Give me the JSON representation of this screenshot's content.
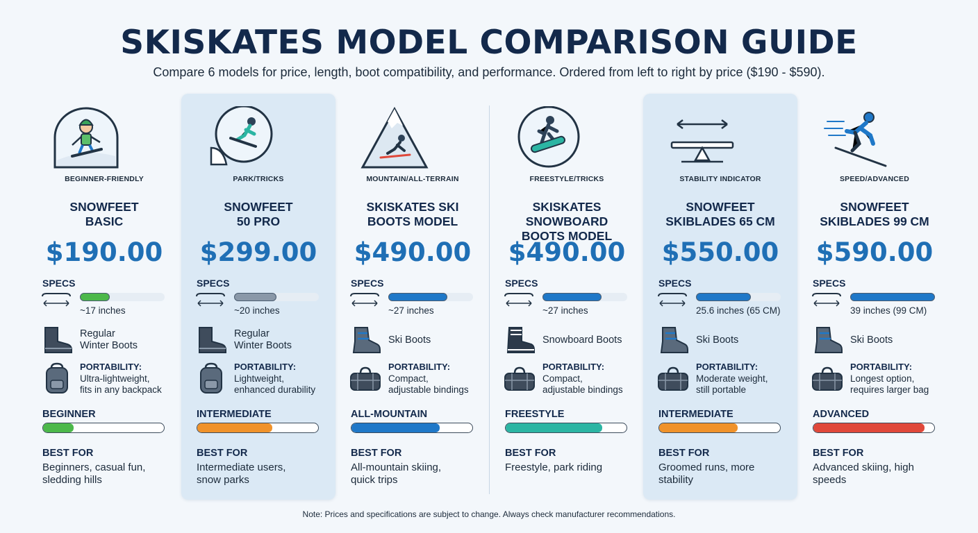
{
  "header": {
    "title": "SKISKATES MODEL COMPARISON GUIDE",
    "subtitle": "Compare 6 models for price, length, boot compatibility, and performance. Ordered from left to right by price ($190 - $590)."
  },
  "labels": {
    "specs": "SPECS",
    "portability": "PORTABILITY:",
    "best_for": "BEST FOR"
  },
  "colors": {
    "green": "#4cb84a",
    "gray": "#8a98a8",
    "blue": "#1f78c8",
    "orange": "#f0922a",
    "teal": "#2bb5a3",
    "red": "#e0483a"
  },
  "models": [
    {
      "category": "BEGINNER-FRIENDLY",
      "icon": "beginner-snowboarder-icon",
      "name": "SNOWFEET\nBASIC",
      "price": "$190.00",
      "length": "~17 inches",
      "length_fraction": 0.35,
      "length_color": "#4cb84a",
      "boots": "Regular\nWinter Boots",
      "boot_icon": "winter-boot-icon",
      "portability": "Ultra-lightweight,\nfits in any backpack",
      "bag_icon": "backpack-icon",
      "level": "BEGINNER",
      "level_fraction": 0.25,
      "level_color": "#4cb84a",
      "best_for": "Beginners, casual fun,\nsledding hills",
      "highlight": false
    },
    {
      "category": "PARK/TRICKS",
      "icon": "park-tricks-icon",
      "name": "SNOWFEET\n50 PRO",
      "price": "$299.00",
      "length": "~20 inches",
      "length_fraction": 0.5,
      "length_color": "#8a98a8",
      "boots": "Regular\nWinter Boots",
      "boot_icon": "winter-boot-icon",
      "portability": "Lightweight,\nenhanced durability",
      "bag_icon": "backpack-icon",
      "level": "INTERMEDIATE",
      "level_fraction": 0.62,
      "level_color": "#f0922a",
      "best_for": "Intermediate users,\nsnow parks",
      "highlight": true
    },
    {
      "category": "MOUNTAIN/ALL-TERRAIN",
      "icon": "mountain-skier-icon",
      "name": "SKISKATES SKI\nBOOTS MODEL",
      "price": "$490.00",
      "length": "~27 inches",
      "length_fraction": 0.7,
      "length_color": "#1f78c8",
      "boots": "Ski Boots",
      "boot_icon": "ski-boot-icon",
      "portability": "Compact,\nadjustable bindings",
      "bag_icon": "duffel-bag-icon",
      "level": "ALL-MOUNTAIN",
      "level_fraction": 0.73,
      "level_color": "#1f78c8",
      "best_for": "All-mountain skiing,\nquick trips",
      "highlight": false
    },
    {
      "category": "FREESTYLE/TRICKS",
      "icon": "freestyle-snowboarder-icon",
      "name": "SKISKATES SNOWBOARD\nBOOTS MODEL",
      "price": "$490.00",
      "length": "~27 inches",
      "length_fraction": 0.7,
      "length_color": "#1f78c8",
      "boots": "Snowboard Boots",
      "boot_icon": "snowboard-boot-icon",
      "portability": "Compact,\nadjustable bindings",
      "bag_icon": "duffel-bag-icon",
      "level": "FREESTYLE",
      "level_fraction": 0.8,
      "level_color": "#2bb5a3",
      "best_for": "Freestyle, park riding",
      "highlight": false
    },
    {
      "category": "STABILITY INDICATOR",
      "icon": "stability-balance-icon",
      "name": "SNOWFEET\nSKIBLADES 65 CM",
      "price": "$550.00",
      "length": "25.6 inches (65 CM)",
      "length_fraction": 0.65,
      "length_color": "#1f78c8",
      "boots": "Ski Boots",
      "boot_icon": "ski-boot-icon",
      "portability": "Moderate weight,\nstill portable",
      "bag_icon": "duffel-bag-icon",
      "level": "INTERMEDIATE",
      "level_fraction": 0.65,
      "level_color": "#f0922a",
      "best_for": "Groomed runs, more\nstability",
      "highlight": true
    },
    {
      "category": "SPEED/ADVANCED",
      "icon": "speed-skier-icon",
      "name": "SNOWFEET\nSKIBLADES 99 CM",
      "price": "$590.00",
      "length": "39 inches (99 CM)",
      "length_fraction": 1.0,
      "length_color": "#1f78c8",
      "boots": "Ski Boots",
      "boot_icon": "ski-boot-icon",
      "portability": "Longest option,\nrequires larger bag",
      "bag_icon": "duffel-bag-icon",
      "level": "ADVANCED",
      "level_fraction": 0.92,
      "level_color": "#e0483a",
      "best_for": "Advanced skiing, high\nspeeds",
      "highlight": false
    }
  ],
  "footer": {
    "note": "Note: Prices and specifications are subject to change. Always check manufacturer recommendations."
  }
}
